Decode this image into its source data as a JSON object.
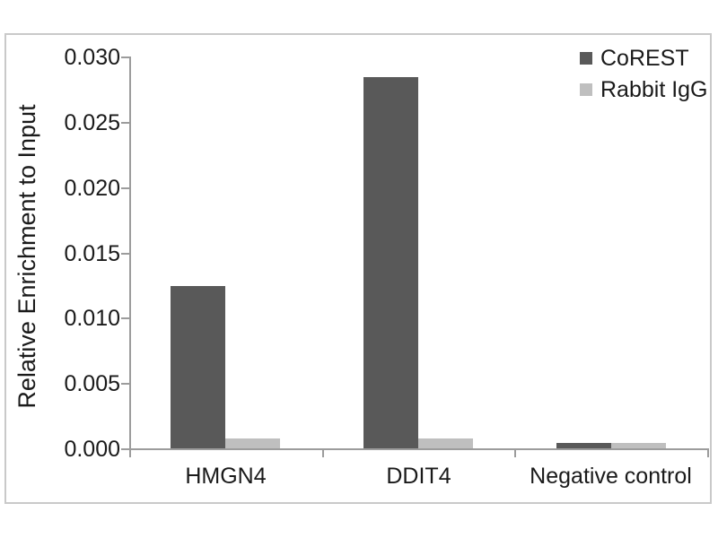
{
  "chart_data": {
    "type": "bar",
    "title": "",
    "xlabel": "",
    "ylabel": "Relative Enrichment to Input",
    "categories": [
      "HMGN4",
      "DDIT4",
      "Negative control"
    ],
    "series": [
      {
        "name": "CoREST",
        "color": "#595959",
        "values": [
          0.0125,
          0.0285,
          0.0005
        ]
      },
      {
        "name": "Rabbit IgG",
        "color": "#bfbfbf",
        "values": [
          0.0008,
          0.0008,
          0.0005
        ]
      }
    ],
    "ylim": [
      0,
      0.03
    ],
    "ytick_step": 0.005,
    "yticks": [
      "0.000",
      "0.005",
      "0.010",
      "0.015",
      "0.020",
      "0.025",
      "0.030"
    ],
    "grid": false,
    "legend_position": "top-right",
    "colors": {
      "axis": "#9c9c9c",
      "frame_border": "#c9c9c9",
      "text": "#1a1a1a",
      "background": "#ffffff"
    }
  }
}
